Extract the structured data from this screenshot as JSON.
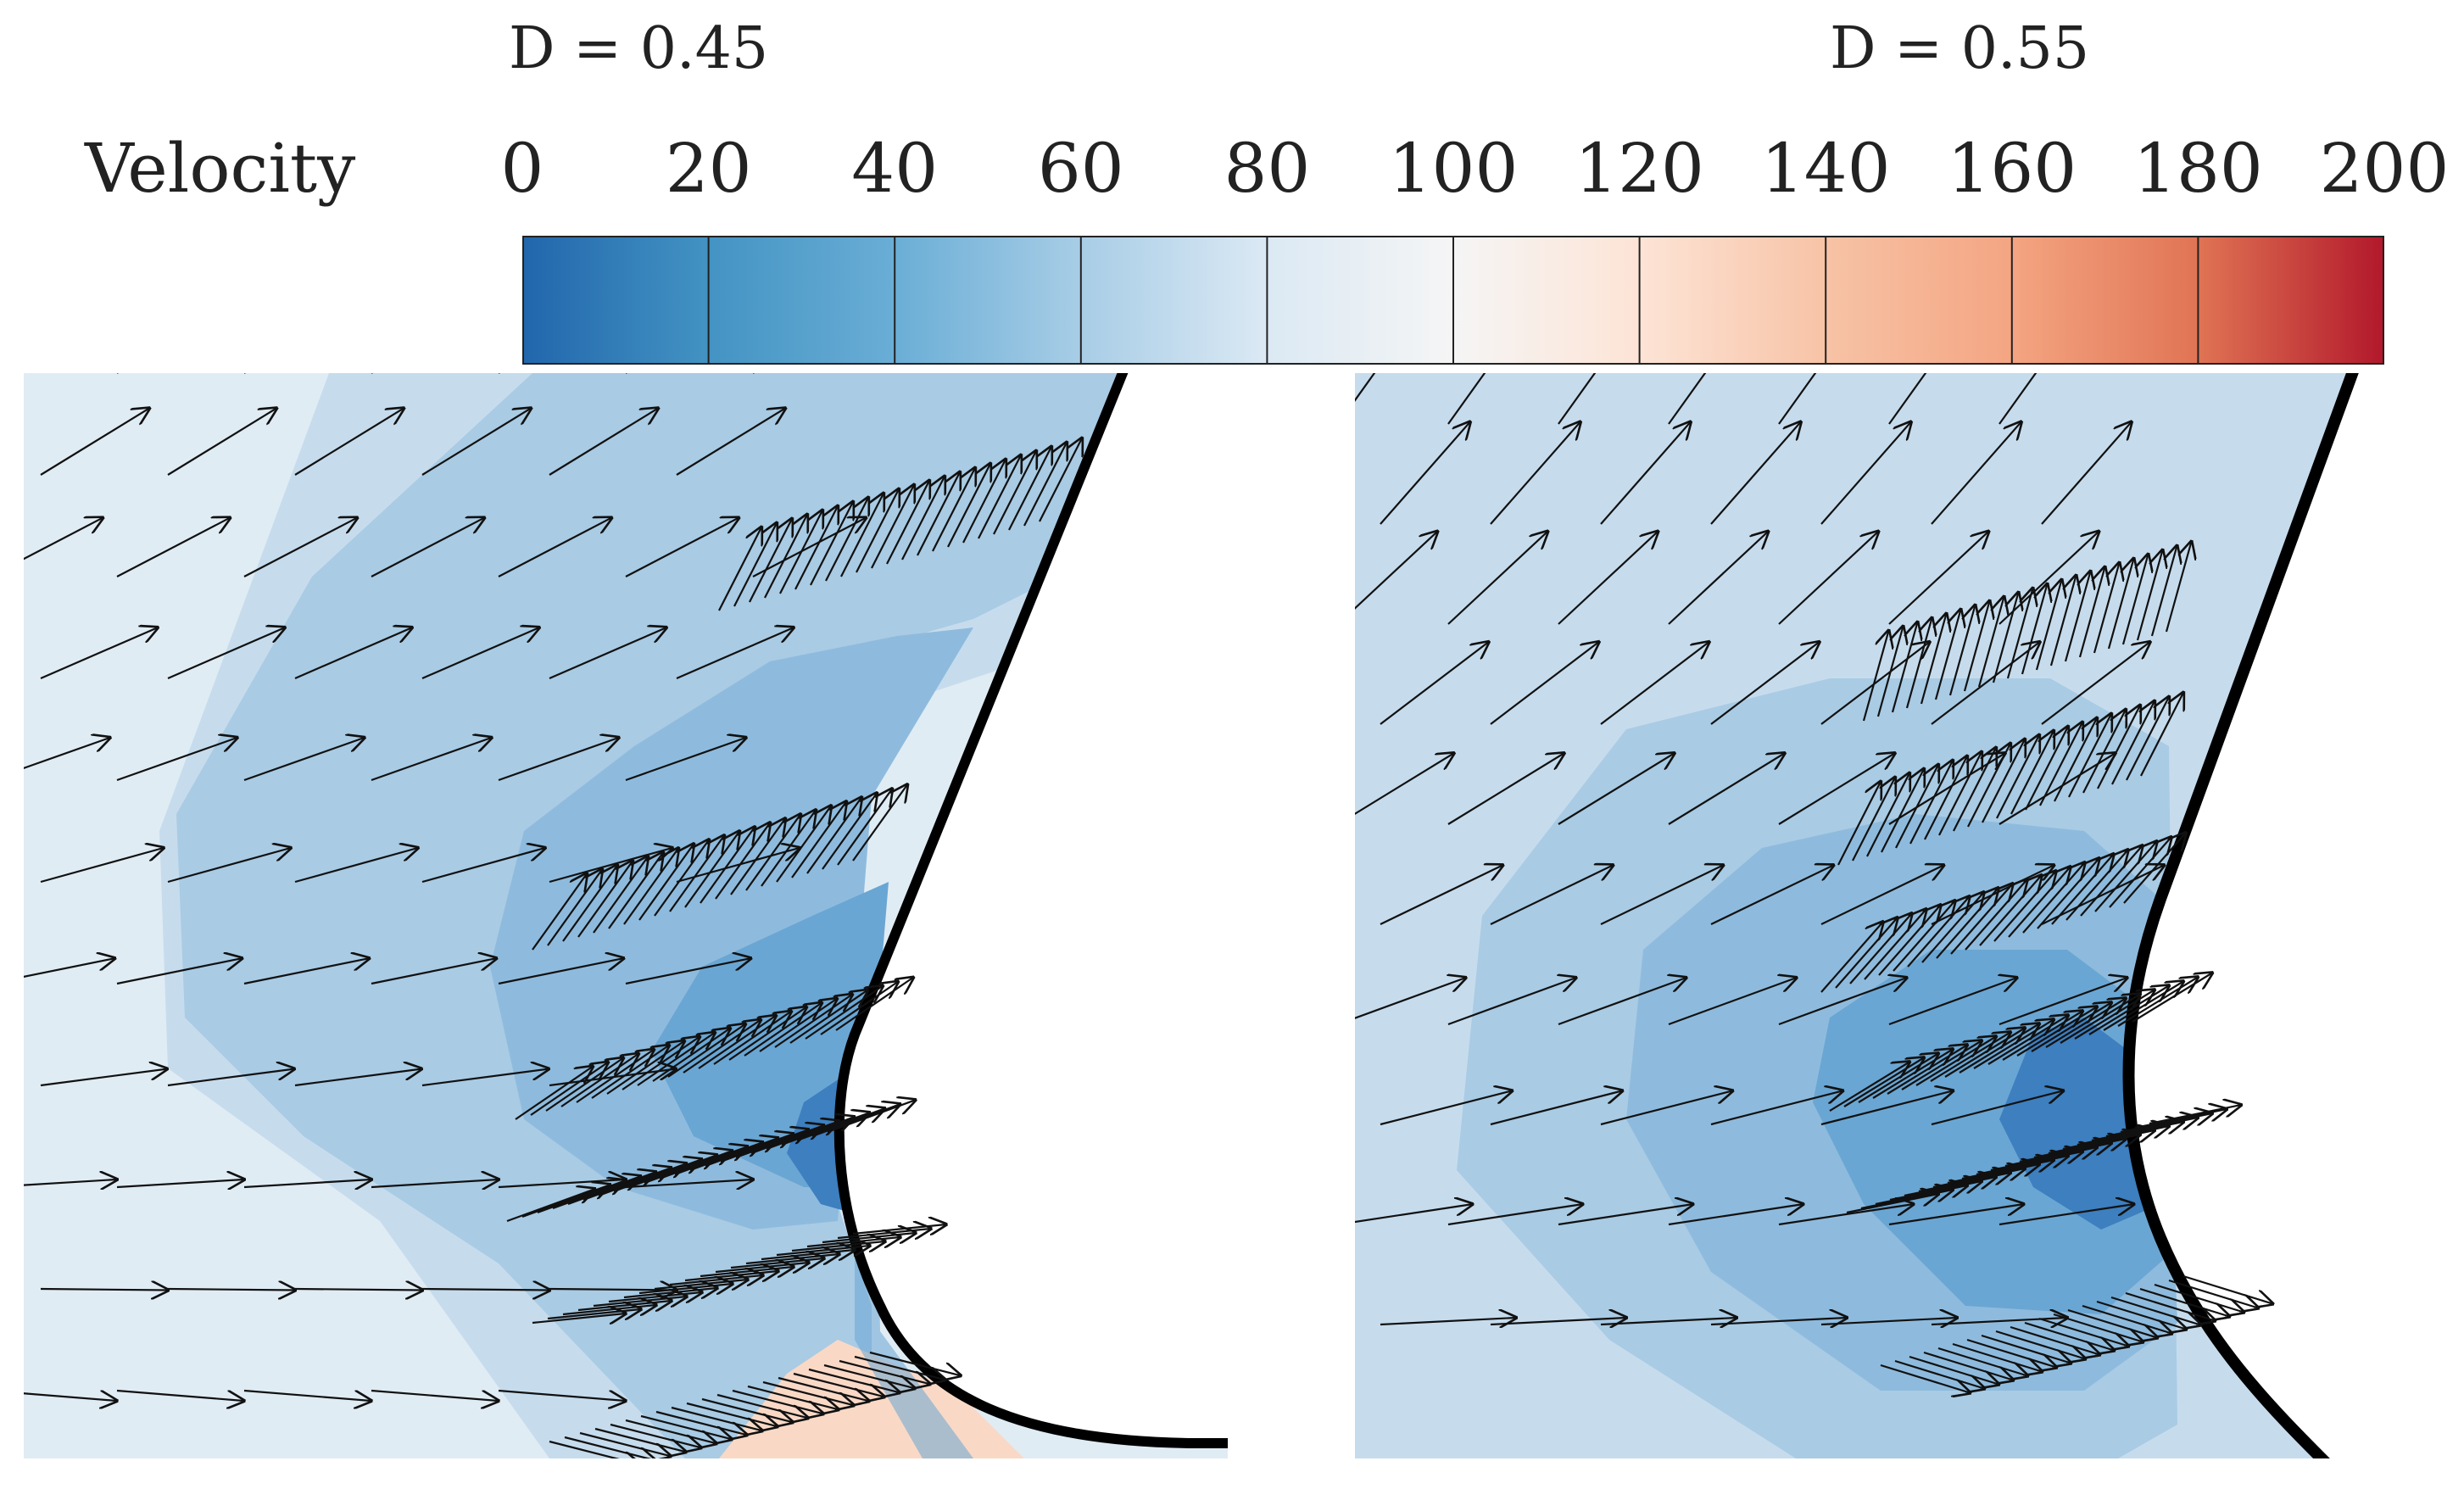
{
  "titles": {
    "left": "D = 0.45",
    "right": "D = 0.55"
  },
  "legend": {
    "title": "Velocity",
    "ticks": [
      "0",
      "20",
      "40",
      "60",
      "80",
      "100",
      "120",
      "140",
      "160",
      "180",
      "200"
    ],
    "colors": [
      "#2166ac",
      "#4393c3",
      "#6aaed6",
      "#a8cde6",
      "#dbe9f4",
      "#f5f5f5",
      "#fde4d6",
      "#f7c3a6",
      "#f4a582",
      "#e07454",
      "#b2182b"
    ]
  },
  "fill_colors": {
    "band_1": "#e0ecf4",
    "band_2": "#c6dced",
    "band_3": "#a9cbe4",
    "band_4": "#8ebbdd",
    "band_5": "#6aa6d3",
    "band_6": "#3d7fbf",
    "warm": "#f9d9c6"
  }
}
